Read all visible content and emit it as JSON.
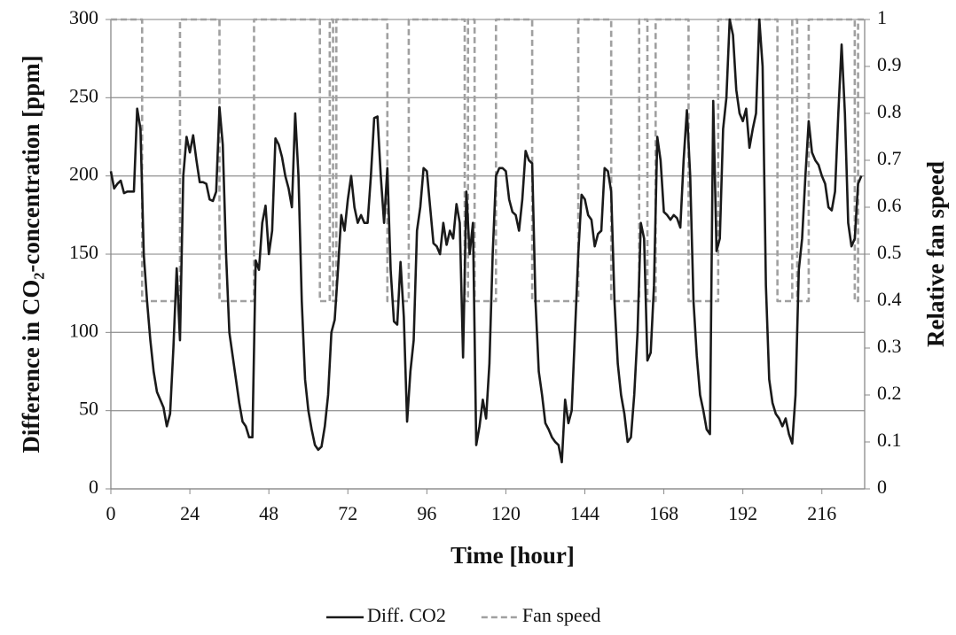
{
  "chart_data": {
    "type": "line",
    "x_label": "Time [hour]",
    "y_label": "Difference in CO₂-concentration [ppm]",
    "y2_label": "Relative fan speed",
    "x": [
      0,
      1,
      2,
      3,
      4,
      5,
      6,
      7,
      8,
      9,
      10,
      11,
      12,
      13,
      14,
      15,
      16,
      17,
      18,
      19,
      20,
      21,
      22,
      23,
      24,
      25,
      26,
      27,
      28,
      29,
      30,
      31,
      32,
      33,
      34,
      35,
      36,
      37,
      38,
      39,
      40,
      41,
      42,
      43,
      44,
      45,
      46,
      47,
      48,
      49,
      50,
      51,
      52,
      53,
      54,
      55,
      56,
      57,
      58,
      59,
      60,
      61,
      62,
      63,
      64,
      65,
      66,
      67,
      68,
      69,
      70,
      71,
      72,
      73,
      74,
      75,
      76,
      77,
      78,
      79,
      80,
      81,
      82,
      83,
      84,
      85,
      86,
      87,
      88,
      89,
      90,
      91,
      92,
      93,
      94,
      95,
      96,
      97,
      98,
      99,
      100,
      101,
      102,
      103,
      104,
      105,
      106,
      107,
      108,
      109,
      110,
      111,
      112,
      113,
      114,
      115,
      116,
      117,
      118,
      119,
      120,
      121,
      122,
      123,
      124,
      125,
      126,
      127,
      128,
      129,
      130,
      131,
      132,
      133,
      134,
      135,
      136,
      137,
      138,
      139,
      140,
      141,
      142,
      143,
      144,
      145,
      146,
      147,
      148,
      149,
      150,
      151,
      152,
      153,
      154,
      155,
      156,
      157,
      158,
      159,
      160,
      161,
      162,
      163,
      164,
      165,
      166,
      167,
      168,
      169,
      170,
      171,
      172,
      173,
      174,
      175,
      176,
      177,
      178,
      179,
      180,
      181,
      182,
      183,
      184,
      185,
      186,
      187,
      188,
      189,
      190,
      191,
      192,
      193,
      194,
      195,
      196,
      197,
      198,
      199,
      200,
      201,
      202,
      203,
      204,
      205,
      206,
      207,
      208,
      209,
      210,
      211,
      212,
      213,
      214,
      215,
      216,
      217,
      218,
      219,
      220,
      221,
      222,
      223,
      224,
      225,
      226,
      227,
      228
    ],
    "series": [
      {
        "name": "Diff. CO2",
        "color": "#1a1a1a",
        "dashed": false,
        "values": [
          203,
          192,
          195,
          197,
          189,
          190,
          190,
          190,
          243,
          230,
          150,
          120,
          95,
          75,
          62,
          57,
          52,
          40,
          48,
          90,
          141,
          95,
          200,
          225,
          215,
          226,
          210,
          196,
          196,
          195,
          185,
          184,
          190,
          244,
          220,
          150,
          100,
          85,
          70,
          55,
          43,
          40,
          33,
          33,
          146,
          140,
          170,
          181,
          150,
          165,
          224,
          220,
          212,
          200,
          192,
          180,
          240,
          200,
          120,
          70,
          50,
          38,
          28,
          25,
          27,
          40,
          60,
          100,
          108,
          140,
          175,
          165,
          185,
          200,
          180,
          170,
          175,
          170,
          170,
          200,
          237,
          238,
          200,
          170,
          205,
          140,
          107,
          105,
          145,
          110,
          43,
          75,
          95,
          165,
          180,
          205,
          203,
          180,
          157,
          155,
          150,
          170,
          156,
          165,
          160,
          182,
          170,
          84,
          190,
          150,
          170,
          28,
          40,
          57,
          45,
          80,
          150,
          200,
          205,
          205,
          203,
          185,
          177,
          175,
          165,
          185,
          216,
          210,
          208,
          120,
          75,
          60,
          42,
          38,
          33,
          30,
          28,
          17,
          57,
          42,
          50,
          100,
          150,
          188,
          185,
          175,
          172,
          155,
          163,
          165,
          205,
          203,
          190,
          120,
          80,
          60,
          48,
          30,
          33,
          60,
          100,
          170,
          160,
          82,
          87,
          130,
          225,
          210,
          177,
          175,
          172,
          175,
          173,
          167,
          210,
          242,
          200,
          120,
          85,
          60,
          50,
          38,
          35,
          248,
          152,
          160,
          230,
          250,
          300,
          290,
          255,
          240,
          235,
          243,
          218,
          230,
          240,
          300,
          270,
          130,
          70,
          55,
          48,
          45,
          40,
          45,
          35,
          29,
          60,
          140,
          160,
          200,
          235,
          215,
          210,
          207,
          200,
          195,
          180,
          178,
          190,
          240,
          284,
          240,
          170,
          155,
          160,
          195,
          200
        ]
      },
      {
        "name": "Fan speed",
        "color": "#a0a0a0",
        "dashed": true,
        "axis": "y2",
        "x": [
          0,
          9.5,
          9.5,
          21,
          21,
          33,
          33,
          43.5,
          43.5,
          63.5,
          63.5,
          66.5,
          66.5,
          67.5,
          67.5,
          68.5,
          68.5,
          84,
          84,
          90.5,
          90.5,
          107.5,
          107.5,
          108.5,
          108.5,
          110.5,
          110.5,
          117,
          117,
          128,
          128,
          142,
          142,
          152,
          152,
          160.5,
          160.5,
          163,
          163,
          165.5,
          165.5,
          175.5,
          175.5,
          184.5,
          184.5,
          202.5,
          202.5,
          207,
          207,
          208.5,
          208.5,
          212,
          212,
          226,
          226,
          227,
          227,
          229
        ],
        "values": [
          1,
          1,
          0.4,
          0.4,
          1,
          1,
          0.4,
          0.4,
          1,
          1,
          0.4,
          0.4,
          1,
          1,
          0.4,
          0.4,
          1,
          1,
          0.4,
          0.4,
          1,
          1,
          0.4,
          0.4,
          1,
          1,
          0.4,
          0.4,
          1,
          1,
          0.4,
          0.4,
          1,
          1,
          0.4,
          0.4,
          1,
          1,
          0.4,
          0.4,
          1,
          1,
          0.4,
          0.4,
          1,
          1,
          0.4,
          0.4,
          1,
          1,
          0.4,
          0.4,
          1,
          1,
          0.4,
          0.4,
          1,
          1
        ]
      }
    ],
    "xlim": [
      0,
      229
    ],
    "xticks": [
      0,
      24,
      48,
      72,
      96,
      120,
      144,
      168,
      192,
      216
    ],
    "ylim": [
      0,
      300
    ],
    "yticks": [
      0,
      50,
      100,
      150,
      200,
      250,
      300
    ],
    "y2lim": [
      0,
      1
    ],
    "y2ticks": [
      0,
      0.1,
      0.2,
      0.3,
      0.4,
      0.5,
      0.6,
      0.7,
      0.8,
      0.9,
      1
    ],
    "grid": true,
    "legend": "bottom"
  }
}
